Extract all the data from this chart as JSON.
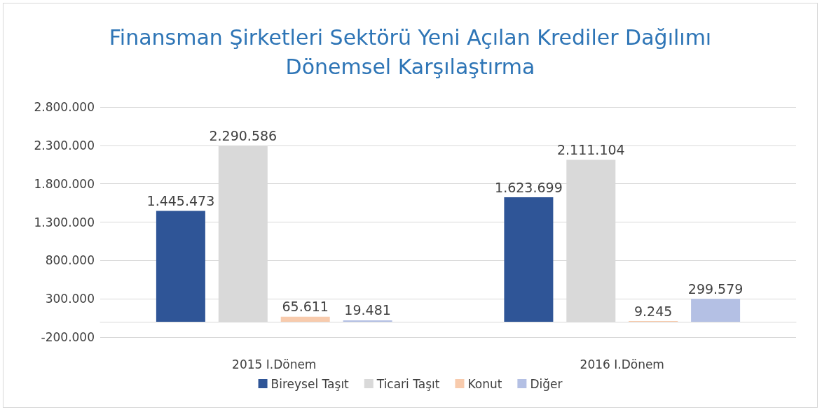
{
  "chart_data": {
    "type": "bar",
    "title": "Finansman Şirketleri Sektörü Yeni Açılan Krediler Dağılımı\nDönemsel Karşılaştırma",
    "categories": [
      "2015 I.Dönem",
      "2016 I.Dönem"
    ],
    "series": [
      {
        "name": "Bireysel Taşıt",
        "color": "#2f5597",
        "values": [
          1445473,
          1623699
        ],
        "value_labels": [
          "1.445.473",
          "1.623.699"
        ]
      },
      {
        "name": "Ticari Taşıt",
        "color": "#d9d9d9",
        "values": [
          2290586,
          2111104
        ],
        "value_labels": [
          "2.290.586",
          "2.111.104"
        ]
      },
      {
        "name": "Konut",
        "color": "#f8cbad",
        "values": [
          65611,
          9245
        ],
        "value_labels": [
          "65.611",
          "9.245"
        ]
      },
      {
        "name": "Diğer",
        "color": "#b4c0e4",
        "values": [
          19481,
          299579
        ],
        "value_labels": [
          "19.481",
          "299.579"
        ]
      }
    ],
    "ylim": [
      -200000,
      2800000
    ],
    "yticks": [
      {
        "value": -200000,
        "label": "-200.000"
      },
      {
        "value": 300000,
        "label": "300.000"
      },
      {
        "value": 800000,
        "label": "800.000"
      },
      {
        "value": 1300000,
        "label": "1.300.000"
      },
      {
        "value": 1800000,
        "label": "1.800.000"
      },
      {
        "value": 2300000,
        "label": "2.300.000"
      },
      {
        "value": 2800000,
        "label": "2.800.000"
      }
    ],
    "grid": "y",
    "legend": "bottom"
  }
}
